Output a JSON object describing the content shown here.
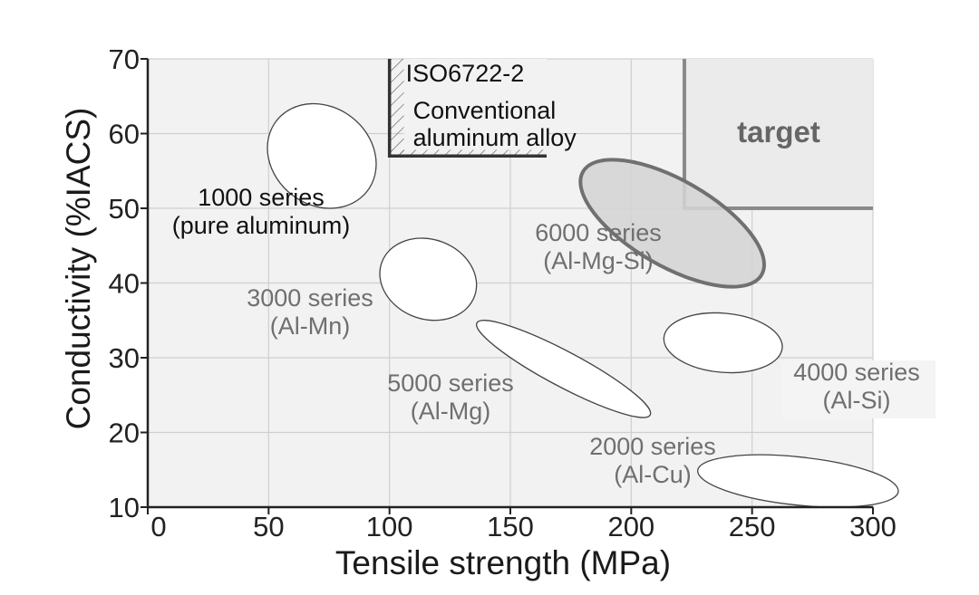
{
  "chart_data": {
    "type": "scatter",
    "xlabel": "Tensile strength (MPa)",
    "ylabel": "Conductivity (%IACS)",
    "xlim": [
      0,
      300
    ],
    "ylim": [
      10,
      70
    ],
    "x_ticks": [
      "0",
      "50",
      "100",
      "150",
      "200",
      "250",
      "300"
    ],
    "y_ticks": [
      "10",
      "20",
      "30",
      "40",
      "50",
      "60",
      "70"
    ],
    "grid": true,
    "regions": [
      {
        "name_lines": [
          "1000 series",
          "(pure aluminum)"
        ],
        "center": [
          72,
          57
        ],
        "tensile_range": [
          50,
          95
        ],
        "conductivity_range": [
          50,
          64
        ],
        "style": "dark-label"
      },
      {
        "name_lines": [
          "3000 series",
          "(Al-Mn)"
        ],
        "center": [
          116,
          40.5
        ],
        "tensile_range": [
          97,
          137
        ],
        "conductivity_range": [
          35,
          46
        ],
        "style": "grey-label"
      },
      {
        "name_lines": [
          "5000 series",
          "(Al-Mg)"
        ],
        "center": [
          172,
          28.5
        ],
        "tensile_range": [
          150,
          222
        ],
        "conductivity_range": [
          22,
          35
        ],
        "style": "grey-label"
      },
      {
        "name_lines": [
          "6000 series",
          "(Al-Mg-Si)"
        ],
        "center": [
          217,
          48
        ],
        "tensile_range": [
          188,
          264
        ],
        "conductivity_range": [
          41,
          58
        ],
        "style": "highlighted"
      },
      {
        "name_lines": [
          "4000 series",
          "(Al-Si)"
        ],
        "center": [
          238,
          32
        ],
        "tensile_range": [
          214,
          263
        ],
        "conductivity_range": [
          28,
          36
        ],
        "style": "grey-label"
      },
      {
        "name_lines": [
          "2000 series",
          "(Al-Cu)"
        ],
        "center": [
          269,
          13.5
        ],
        "tensile_range": [
          232,
          315
        ],
        "conductivity_range": [
          10,
          17
        ],
        "style": "grey-label"
      }
    ],
    "reference": {
      "name_lines": [
        "ISO6722-2",
        "Conventional",
        "aluminum alloy"
      ],
      "min_tensile": 100,
      "min_conductivity": 57
    },
    "target": {
      "label": "target",
      "min_tensile": 222,
      "min_conductivity": 50
    },
    "colors": {
      "background": "#ffffff",
      "plot_background": "#f2f2f2",
      "grid": "#cfcfcf",
      "axis": "#222222",
      "ellipse_stroke": "#444444",
      "highlight_fill": "#d4d4d4",
      "highlight_stroke": "#707070",
      "reference_line": "#333333",
      "target_fill": "#ebebeb",
      "target_line": "#8a8a8a",
      "label_dark": "#111111",
      "label_grey": "#6f6f6f"
    }
  }
}
